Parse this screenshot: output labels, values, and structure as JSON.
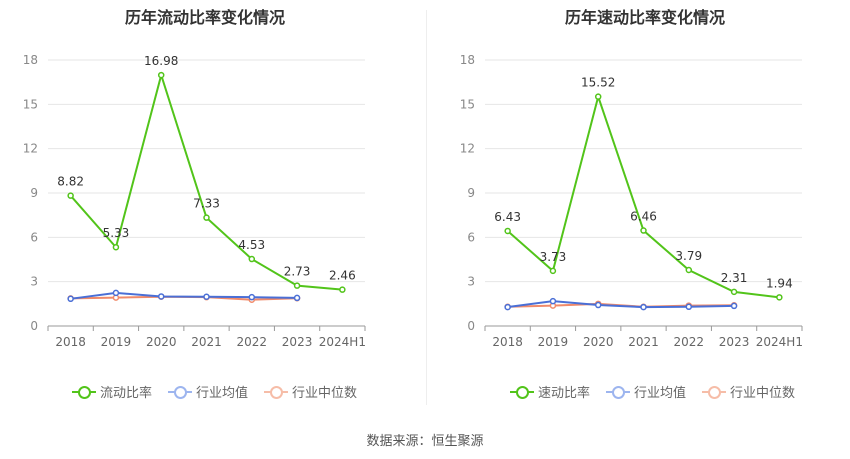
{
  "source_text": "数据来源：恒生聚源",
  "chart_data": [
    {
      "type": "line",
      "title": "历年流动比率变化情况",
      "categories": [
        "2018",
        "2019",
        "2020",
        "2021",
        "2022",
        "2023",
        "2024H1"
      ],
      "ylim": [
        0,
        18
      ],
      "yticks": [
        "0",
        "3",
        "6",
        "9",
        "12",
        "15",
        "18"
      ],
      "grid": true,
      "legend_position": "bottom",
      "series": [
        {
          "name": "流动比率",
          "color": "#52c41a",
          "values": [
            8.82,
            5.33,
            16.98,
            7.33,
            4.53,
            2.73,
            2.46
          ],
          "labels": [
            "8.82",
            "5.33",
            "16.98",
            "7.33",
            "4.53",
            "2.73",
            "2.46"
          ]
        },
        {
          "name": "行业均值",
          "color": "#4a6fd6",
          "values": [
            1.84,
            2.24,
            2.0,
            1.98,
            1.95,
            1.9,
            null
          ]
        },
        {
          "name": "行业中位数",
          "color": "#f08a6a",
          "values": [
            1.87,
            1.92,
            1.98,
            1.95,
            1.78,
            1.88,
            null
          ]
        }
      ]
    },
    {
      "type": "line",
      "title": "历年速动比率变化情况",
      "categories": [
        "2018",
        "2019",
        "2020",
        "2021",
        "2022",
        "2023",
        "2024H1"
      ],
      "ylim": [
        0,
        18
      ],
      "yticks": [
        "0",
        "3",
        "6",
        "9",
        "12",
        "15",
        "18"
      ],
      "grid": true,
      "legend_position": "bottom",
      "series": [
        {
          "name": "速动比率",
          "color": "#52c41a",
          "values": [
            6.43,
            3.73,
            15.52,
            6.46,
            3.79,
            2.31,
            1.94
          ],
          "labels": [
            "6.43",
            "3.73",
            "15.52",
            "6.46",
            "3.79",
            "2.31",
            "1.94"
          ]
        },
        {
          "name": "行业均值",
          "color": "#4a6fd6",
          "values": [
            1.28,
            1.68,
            1.42,
            1.28,
            1.3,
            1.36,
            null
          ]
        },
        {
          "name": "行业中位数",
          "color": "#f08a6a",
          "values": [
            1.3,
            1.38,
            1.5,
            1.3,
            1.38,
            1.4,
            null
          ]
        }
      ]
    }
  ],
  "legend_colors": {
    "main": "#52c41a",
    "avg": "#9db5ef",
    "median": "#f6bda8"
  }
}
